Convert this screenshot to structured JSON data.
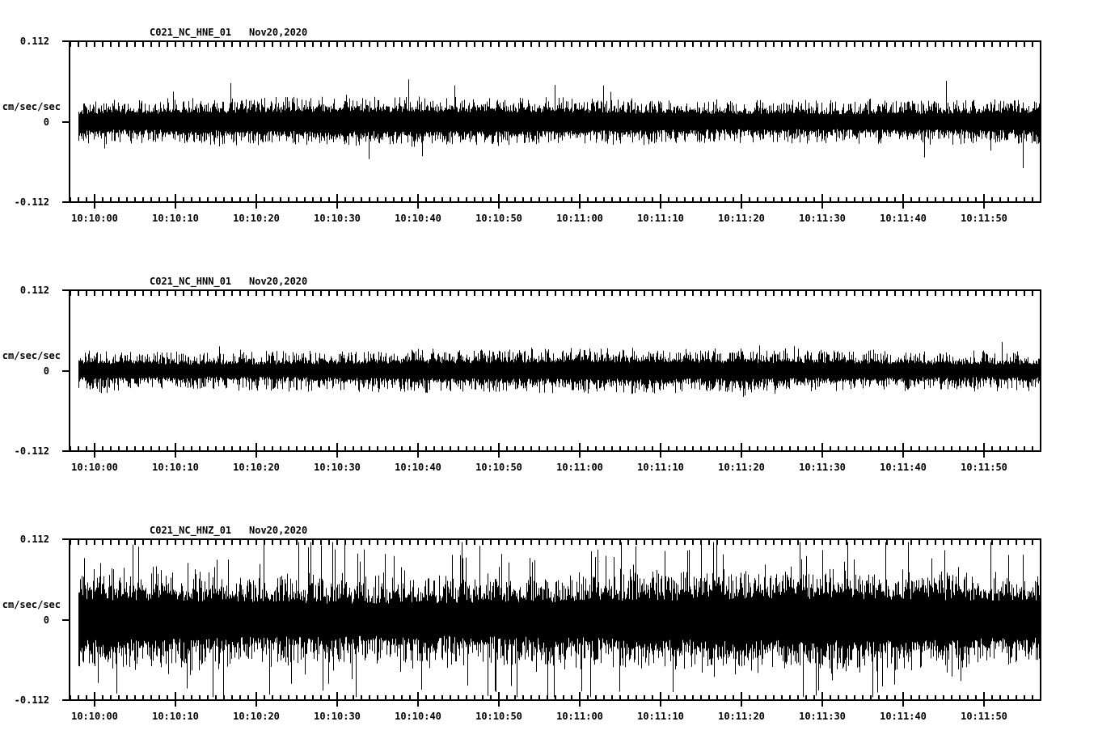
{
  "app": {
    "background_color": "#ffffff",
    "foreground_color": "#000000"
  },
  "chart_data": {
    "type": "line",
    "subtype": "seismogram",
    "date": "Nov20,2020",
    "ylabel": "cm/sec/sec",
    "ylim": [
      -0.112,
      0.112
    ],
    "ytick_labels": [
      "0.112",
      "0",
      "-0.112"
    ],
    "xtick_labels": [
      "10:10:00",
      "10:10:10",
      "10:10:20",
      "10:10:30",
      "10:10:40",
      "10:10:50",
      "10:11:00",
      "10:11:10",
      "10:11:20",
      "10:11:30",
      "10:11:40",
      "10:11:50"
    ],
    "x_minor_tick_seconds": 1,
    "x_major_tick_seconds": 10,
    "grid": false,
    "legend": "none",
    "line_color": "#000000",
    "panels": [
      {
        "title": "C021_NC_HNE_01",
        "date": "Nov20,2020",
        "channel": "HNE",
        "units": "cm/sec/sec",
        "noise": {
          "core_amp": 0.0146,
          "hair_amp": 0.0157,
          "hair_prob": 0.6,
          "spike_amp": 0.034,
          "spike_prob": 0.015,
          "max_amp": 0.0655,
          "seed": 11
        }
      },
      {
        "title": "C021_NC_HNN_01",
        "date": "Nov20,2020",
        "channel": "HNN",
        "units": "cm/sec/sec",
        "noise": {
          "core_amp": 0.0124,
          "hair_amp": 0.0157,
          "hair_prob": 0.65,
          "spike_amp": 0.0135,
          "spike_prob": 0.02,
          "max_amp": 0.045,
          "seed": 22
        }
      },
      {
        "title": "C021_NC_HNZ_01",
        "date": "Nov20,2020",
        "channel": "HNZ",
        "units": "cm/sec/sec",
        "noise": {
          "core_amp": 0.0315,
          "hair_amp": 0.0315,
          "hair_prob": 0.7,
          "spike_amp": 0.0675,
          "spike_prob": 0.12,
          "max_amp": 0.108,
          "seed": 33
        }
      }
    ]
  }
}
